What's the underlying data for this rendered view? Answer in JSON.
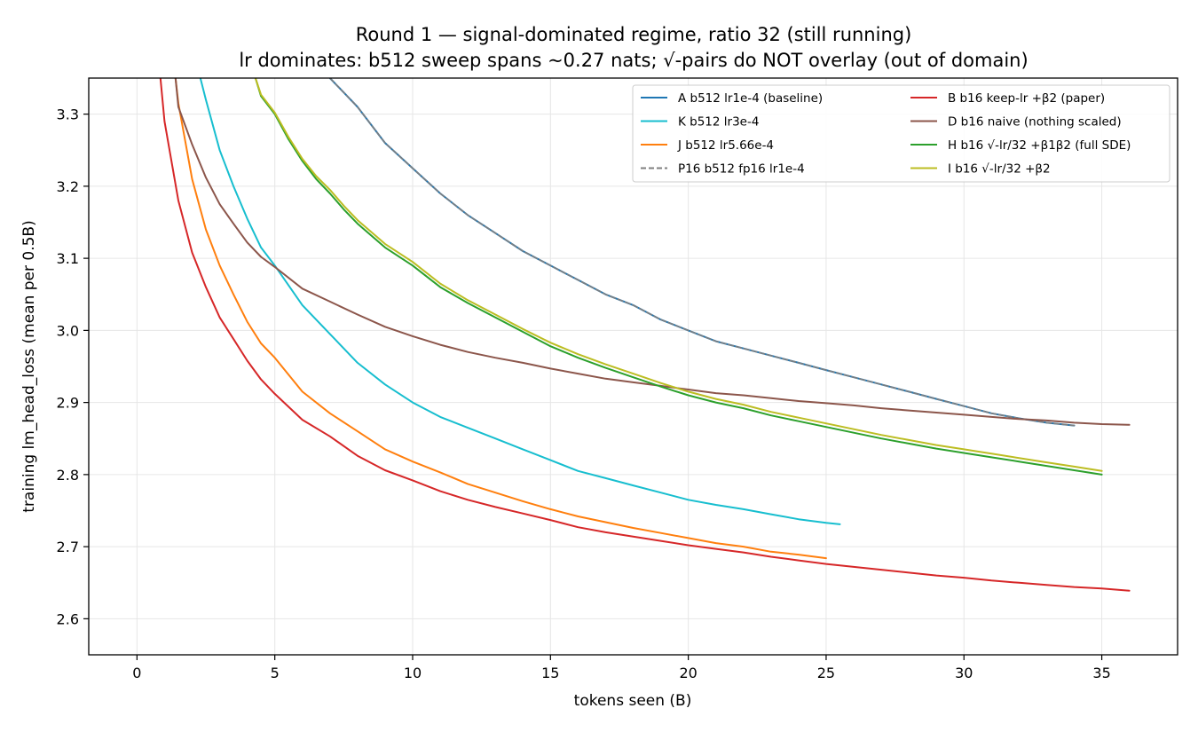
{
  "chart_data": {
    "type": "line",
    "title": "Round 1 — signal-dominated regime, ratio 32 (still running)",
    "subtitle": "lr dominates: b512 sweep spans ~0.27 nats; √-pairs do NOT overlay (out of domain)",
    "xlabel": "tokens seen (B)",
    "ylabel": "training lm_head_loss (mean per 0.5B)",
    "xlim": [
      -1.75,
      37.75
    ],
    "ylim": [
      2.55,
      3.35
    ],
    "x_ticks": [
      "0",
      "5",
      "10",
      "15",
      "20",
      "25",
      "30",
      "35"
    ],
    "y_ticks": [
      "2.6",
      "2.7",
      "2.8",
      "2.9",
      "3.0",
      "3.1",
      "3.2",
      "3.3"
    ],
    "grid": true,
    "legend_position": "top-right",
    "series": [
      {
        "name": "A  b512 lr1e-4 (baseline)",
        "color": "#1f77b4",
        "dash": "solid",
        "x": [
          7,
          8,
          9,
          10,
          11,
          12,
          13,
          14,
          15,
          16,
          17,
          18,
          19,
          20,
          21,
          22,
          23,
          24,
          25,
          26,
          27,
          28,
          29,
          30,
          31,
          32,
          33,
          34
        ],
        "y": [
          3.35,
          3.31,
          3.26,
          3.225,
          3.19,
          3.16,
          3.135,
          3.11,
          3.09,
          3.07,
          3.05,
          3.035,
          3.015,
          3.0,
          2.985,
          2.975,
          2.965,
          2.955,
          2.945,
          2.935,
          2.925,
          2.915,
          2.905,
          2.895,
          2.885,
          2.878,
          2.872,
          2.868
        ]
      },
      {
        "name": "K  b512 lr3e-4",
        "color": "#17becf",
        "dash": "solid",
        "x": [
          2.3,
          2.5,
          3,
          3.5,
          4,
          4.5,
          5,
          6,
          7,
          8,
          9,
          10,
          11,
          12,
          13,
          14,
          15,
          16,
          17,
          18,
          19,
          20,
          21,
          22,
          23,
          24,
          25,
          25.5
        ],
        "y": [
          3.35,
          3.32,
          3.25,
          3.2,
          3.155,
          3.115,
          3.09,
          3.035,
          2.995,
          2.955,
          2.925,
          2.9,
          2.88,
          2.865,
          2.85,
          2.835,
          2.82,
          2.805,
          2.795,
          2.785,
          2.775,
          2.765,
          2.758,
          2.752,
          2.745,
          2.738,
          2.733,
          2.731
        ]
      },
      {
        "name": "J  b512 lr5.66e-4",
        "color": "#ff7f0e",
        "dash": "solid",
        "x": [
          1.4,
          1.5,
          2,
          2.5,
          3,
          3.5,
          4,
          4.5,
          5,
          6,
          7,
          8,
          9,
          10,
          11,
          12,
          13,
          14,
          15,
          16,
          17,
          18,
          19,
          20,
          21,
          22,
          23,
          24,
          25
        ],
        "y": [
          3.35,
          3.315,
          3.21,
          3.14,
          3.09,
          3.05,
          3.012,
          2.982,
          2.962,
          2.915,
          2.885,
          2.86,
          2.835,
          2.818,
          2.803,
          2.787,
          2.775,
          2.763,
          2.752,
          2.742,
          2.734,
          2.726,
          2.719,
          2.712,
          2.705,
          2.7,
          2.693,
          2.689,
          2.684
        ]
      },
      {
        "name": "P16  b512 fp16 lr1e-4",
        "color": "#7f7f7f",
        "dash": "dashed",
        "x": [
          7,
          8,
          9,
          10,
          11,
          12,
          13,
          14,
          15,
          16,
          17,
          18,
          19,
          20,
          21,
          22,
          23,
          24,
          25,
          26,
          27,
          28,
          29,
          30,
          31,
          32,
          33,
          34
        ],
        "y": [
          3.35,
          3.31,
          3.26,
          3.225,
          3.19,
          3.16,
          3.135,
          3.11,
          3.09,
          3.07,
          3.05,
          3.035,
          3.015,
          3.0,
          2.985,
          2.975,
          2.965,
          2.955,
          2.945,
          2.935,
          2.925,
          2.915,
          2.905,
          2.895,
          2.885,
          2.878,
          2.872,
          2.868
        ]
      },
      {
        "name": "B  b16 keep-lr +β2 (paper)",
        "color": "#d62728",
        "dash": "solid",
        "x": [
          0.85,
          1,
          1.5,
          2,
          2.5,
          3,
          3.5,
          4,
          4.5,
          5,
          6,
          7,
          8,
          9,
          10,
          11,
          12,
          13,
          14,
          15,
          16,
          17,
          18,
          19,
          20,
          21,
          22,
          23,
          24,
          25,
          26,
          27,
          28,
          29,
          30,
          31,
          32,
          33,
          34,
          35,
          36
        ],
        "y": [
          3.35,
          3.29,
          3.18,
          3.108,
          3.06,
          3.018,
          2.988,
          2.958,
          2.932,
          2.912,
          2.876,
          2.853,
          2.826,
          2.806,
          2.792,
          2.777,
          2.765,
          2.755,
          2.746,
          2.737,
          2.727,
          2.72,
          2.714,
          2.708,
          2.702,
          2.697,
          2.692,
          2.686,
          2.681,
          2.676,
          2.672,
          2.668,
          2.664,
          2.66,
          2.657,
          2.653,
          2.65,
          2.647,
          2.644,
          2.642,
          2.639
        ]
      },
      {
        "name": "D  b16 naive (nothing scaled)",
        "color": "#8c564b",
        "dash": "solid",
        "x": [
          1.4,
          1.5,
          2,
          2.5,
          3,
          3.5,
          4,
          4.5,
          5,
          6,
          7,
          8,
          9,
          10,
          11,
          12,
          13,
          14,
          15,
          16,
          17,
          18,
          19,
          20,
          21,
          22,
          23,
          24,
          25,
          26,
          27,
          28,
          29,
          30,
          31,
          32,
          33,
          34,
          35,
          36
        ],
        "y": [
          3.35,
          3.31,
          3.258,
          3.212,
          3.175,
          3.148,
          3.122,
          3.102,
          3.088,
          3.058,
          3.04,
          3.022,
          3.005,
          2.992,
          2.98,
          2.97,
          2.962,
          2.955,
          2.947,
          2.94,
          2.933,
          2.928,
          2.923,
          2.918,
          2.913,
          2.91,
          2.906,
          2.902,
          2.899,
          2.896,
          2.892,
          2.889,
          2.886,
          2.883,
          2.88,
          2.877,
          2.875,
          2.872,
          2.87,
          2.869
        ]
      },
      {
        "name": "H  b16 √-lr/32 +β1β2 (full SDE)",
        "color": "#2ca02c",
        "dash": "solid",
        "x": [
          4.3,
          4.5,
          5,
          5.5,
          6,
          6.5,
          7,
          7.5,
          8,
          9,
          10,
          11,
          12,
          13,
          14,
          15,
          16,
          17,
          18,
          19,
          20,
          21,
          22,
          23,
          24,
          25,
          26,
          27,
          28,
          29,
          30,
          31,
          32,
          33,
          34,
          35
        ],
        "y": [
          3.35,
          3.325,
          3.3,
          3.265,
          3.235,
          3.21,
          3.19,
          3.168,
          3.148,
          3.115,
          3.09,
          3.06,
          3.038,
          3.018,
          2.998,
          2.978,
          2.962,
          2.948,
          2.935,
          2.922,
          2.91,
          2.9,
          2.892,
          2.882,
          2.874,
          2.866,
          2.858,
          2.85,
          2.843,
          2.836,
          2.83,
          2.824,
          2.818,
          2.812,
          2.806,
          2.8
        ]
      },
      {
        "name": "I  b16 √-lr/32 +β2",
        "color": "#bcbd22",
        "dash": "solid",
        "x": [
          4.3,
          4.5,
          5,
          5.5,
          6,
          6.5,
          7,
          7.5,
          8,
          9,
          10,
          11,
          12,
          13,
          14,
          15,
          16,
          17,
          18,
          19,
          20,
          21,
          22,
          23,
          24,
          25,
          26,
          27,
          28,
          29,
          30,
          31,
          32,
          33,
          34,
          35
        ],
        "y": [
          3.35,
          3.327,
          3.302,
          3.268,
          3.238,
          3.214,
          3.195,
          3.173,
          3.153,
          3.12,
          3.095,
          3.065,
          3.042,
          3.022,
          3.002,
          2.983,
          2.967,
          2.953,
          2.94,
          2.927,
          2.915,
          2.905,
          2.897,
          2.887,
          2.879,
          2.871,
          2.863,
          2.855,
          2.848,
          2.841,
          2.835,
          2.829,
          2.823,
          2.817,
          2.811,
          2.805
        ]
      }
    ]
  }
}
